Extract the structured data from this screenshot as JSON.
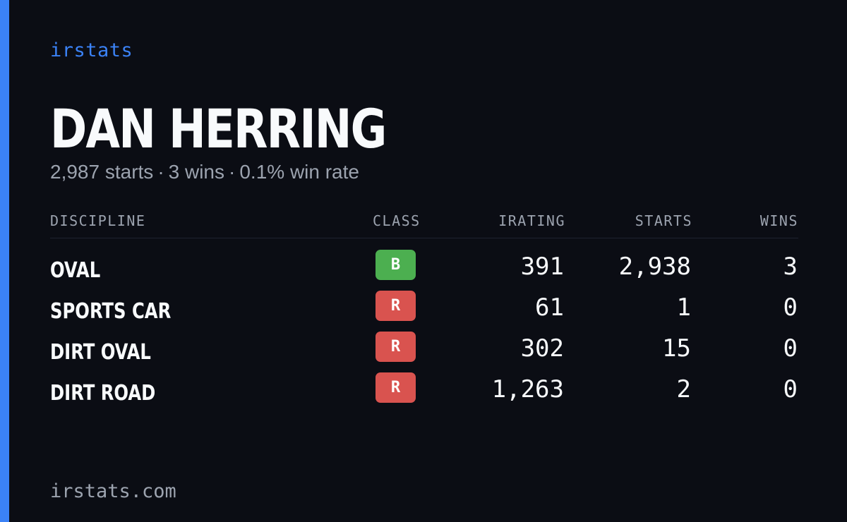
{
  "brand": "irstats",
  "driver": {
    "name": "DAN HERRING",
    "starts_text": "2,987 starts",
    "wins_text": "3 wins",
    "winrate_text": "0.1% win rate",
    "separator": "·"
  },
  "table": {
    "headers": {
      "discipline": "DISCIPLINE",
      "class": "CLASS",
      "irating": "IRATING",
      "starts": "STARTS",
      "wins": "WINS"
    },
    "rows": [
      {
        "discipline": "OVAL",
        "class": "B",
        "class_color": "#4caf50",
        "irating": "391",
        "starts": "2,938",
        "wins": "3"
      },
      {
        "discipline": "SPORTS CAR",
        "class": "R",
        "class_color": "#d9534f",
        "irating": "61",
        "starts": "1",
        "wins": "0"
      },
      {
        "discipline": "DIRT OVAL",
        "class": "R",
        "class_color": "#d9534f",
        "irating": "302",
        "starts": "15",
        "wins": "0"
      },
      {
        "discipline": "DIRT ROAD",
        "class": "R",
        "class_color": "#d9534f",
        "irating": "1,263",
        "starts": "2",
        "wins": "0"
      }
    ]
  },
  "footer": "irstats.com",
  "colors": {
    "background": "#0b0d14",
    "accent": "#3b82f6",
    "text_primary": "#f8fafc",
    "text_muted": "#9ca3af"
  }
}
